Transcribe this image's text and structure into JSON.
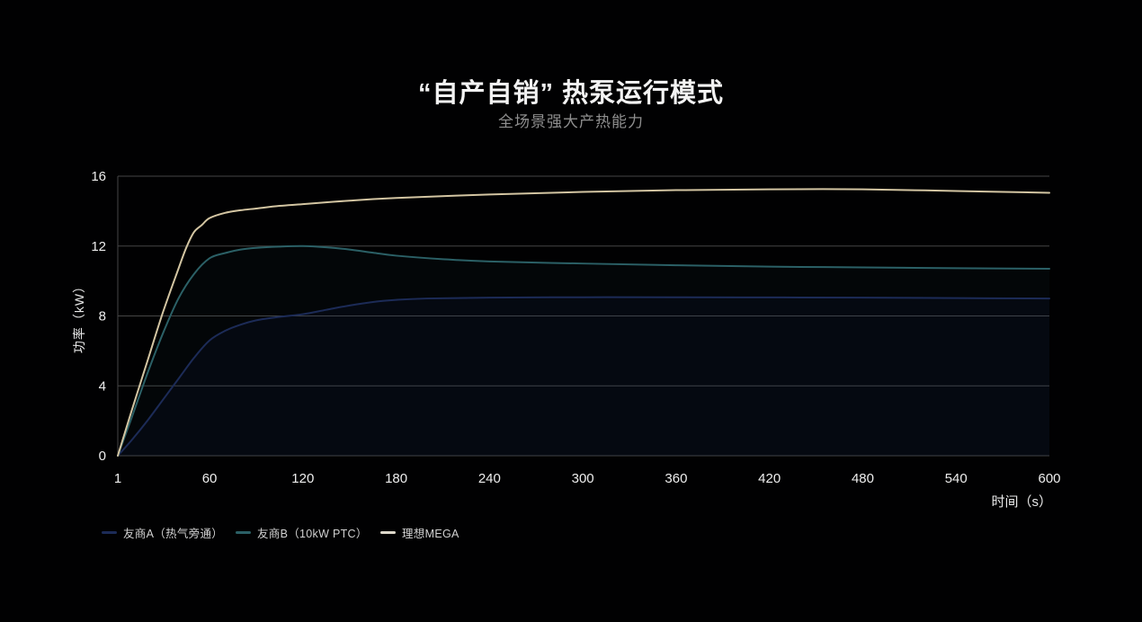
{
  "header": {
    "title": "“自产自销” 热泵运行模式",
    "subtitle": "全场景强大产热能力"
  },
  "colors": {
    "background": "#010102",
    "grid": "#454545",
    "tick_label": "#eeeeee",
    "title": "#f3f3f3",
    "subtitle": "#8f8f8f",
    "legend_label": "#d2d2d2"
  },
  "chart_data": {
    "type": "line",
    "title": "“自产自销” 热泵运行模式",
    "subtitle": "全场景强大产热能力",
    "xlabel": "时间（s）",
    "ylabel": "功率（kW）",
    "xlim": [
      1,
      600
    ],
    "ylim": [
      0,
      16
    ],
    "xticks": [
      1,
      60,
      120,
      180,
      240,
      300,
      360,
      420,
      480,
      540,
      600
    ],
    "yticks": [
      0,
      4,
      8,
      12,
      16
    ],
    "grid": "horizontal-only",
    "legend_position": "bottom-left",
    "series": [
      {
        "name": "友商A（热气旁通）",
        "color": "#1c2b57",
        "marker_color": "#1c2b57",
        "fill": "rgba(28, 43, 95, 0.10)",
        "points": [
          [
            1,
            0
          ],
          [
            10,
            0.9
          ],
          [
            20,
            2.0
          ],
          [
            30,
            3.2
          ],
          [
            40,
            4.4
          ],
          [
            50,
            5.6
          ],
          [
            60,
            6.6
          ],
          [
            70,
            7.15
          ],
          [
            80,
            7.5
          ],
          [
            90,
            7.75
          ],
          [
            105,
            7.95
          ],
          [
            120,
            8.1
          ],
          [
            135,
            8.35
          ],
          [
            150,
            8.6
          ],
          [
            165,
            8.8
          ],
          [
            180,
            8.92
          ],
          [
            200,
            9.0
          ],
          [
            240,
            9.05
          ],
          [
            300,
            9.07
          ],
          [
            360,
            9.07
          ],
          [
            420,
            9.06
          ],
          [
            480,
            9.05
          ],
          [
            540,
            9.02
          ],
          [
            600,
            9.0
          ]
        ]
      },
      {
        "name": "友商B（10kW PTC）",
        "color": "#2b6066",
        "marker_color": "#2b6066",
        "fill": "rgba(40, 90, 98, 0.07)",
        "points": [
          [
            1,
            0
          ],
          [
            10,
            2.2
          ],
          [
            20,
            4.7
          ],
          [
            30,
            7.0
          ],
          [
            40,
            9.0
          ],
          [
            50,
            10.4
          ],
          [
            60,
            11.3
          ],
          [
            70,
            11.6
          ],
          [
            80,
            11.8
          ],
          [
            90,
            11.9
          ],
          [
            105,
            11.97
          ],
          [
            120,
            12.0
          ],
          [
            135,
            11.93
          ],
          [
            150,
            11.8
          ],
          [
            165,
            11.62
          ],
          [
            180,
            11.45
          ],
          [
            210,
            11.25
          ],
          [
            240,
            11.12
          ],
          [
            300,
            11.0
          ],
          [
            360,
            10.9
          ],
          [
            420,
            10.82
          ],
          [
            480,
            10.78
          ],
          [
            540,
            10.73
          ],
          [
            600,
            10.7
          ]
        ]
      },
      {
        "name": "理想MEGA",
        "color": "#d3c5a2",
        "marker_color": "#ddd8cb",
        "fill": "none",
        "points": [
          [
            1,
            0
          ],
          [
            10,
            2.6
          ],
          [
            20,
            5.4
          ],
          [
            30,
            8.2
          ],
          [
            40,
            10.7
          ],
          [
            45,
            11.9
          ],
          [
            50,
            12.8
          ],
          [
            55,
            13.2
          ],
          [
            60,
            13.6
          ],
          [
            70,
            13.9
          ],
          [
            80,
            14.05
          ],
          [
            90,
            14.15
          ],
          [
            105,
            14.3
          ],
          [
            120,
            14.4
          ],
          [
            150,
            14.6
          ],
          [
            180,
            14.75
          ],
          [
            240,
            14.95
          ],
          [
            300,
            15.1
          ],
          [
            360,
            15.2
          ],
          [
            420,
            15.25
          ],
          [
            480,
            15.25
          ],
          [
            540,
            15.15
          ],
          [
            600,
            15.05
          ]
        ]
      }
    ]
  }
}
